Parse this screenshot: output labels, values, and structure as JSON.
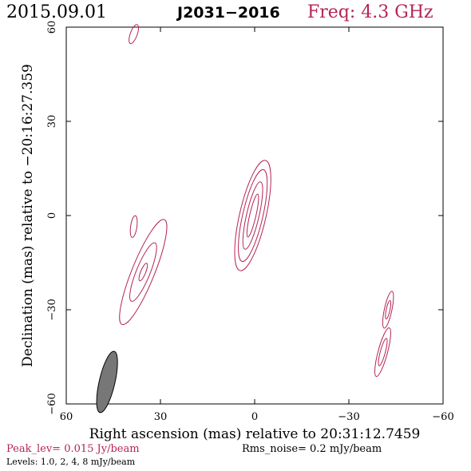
{
  "header": {
    "date": "2015.09.01",
    "source": "J2031−2016",
    "freq": "Freq: 4.3 GHz"
  },
  "footer": {
    "peak": "Peak_lev=  0.015 Jy/beam",
    "rms": "Rms_noise=  0.2 mJy/beam",
    "levels": "Levels: 1.0,   2,   4,   8 mJy/beam"
  },
  "colors": {
    "accent": "#b52456",
    "beam": "#777777"
  },
  "chart_data": {
    "type": "contour",
    "xlabel": "Right ascension (mas) relative to 20:31:12.7459",
    "ylabel": "Declination (mas) relative to −20:16:27.359",
    "xlim": [
      60,
      -60
    ],
    "ylim": [
      -60,
      60
    ],
    "x_ticks": [
      {
        "value": 60,
        "label": "60"
      },
      {
        "value": 30,
        "label": "30"
      },
      {
        "value": 0,
        "label": "0"
      },
      {
        "value": -30,
        "label": "−30"
      },
      {
        "value": -60,
        "label": "−60"
      }
    ],
    "y_ticks": [
      {
        "value": 60,
        "label": "60"
      },
      {
        "value": 30,
        "label": "30"
      },
      {
        "value": 0,
        "label": "0"
      },
      {
        "value": -30,
        "label": "−30"
      },
      {
        "value": -60,
        "label": "−60"
      }
    ],
    "levels_mJy_per_beam": [
      1.0,
      2,
      4,
      8
    ],
    "peak_Jy_per_beam": 0.015,
    "rms_noise_mJy_per_beam": 0.2,
    "beam": {
      "ra": 47,
      "dec": -53,
      "major_mas": 10,
      "minor_mas": 2.5,
      "pa_deg": 13
    },
    "components": [
      {
        "ra": 0.6,
        "dec": 0,
        "contours": [
          {
            "level": 1.0,
            "major": 18,
            "minor": 4.2,
            "pa": 13
          },
          {
            "level": 2,
            "major": 15,
            "minor": 3.2,
            "pa": 13
          },
          {
            "level": 4,
            "major": 11,
            "minor": 2.0,
            "pa": 13
          },
          {
            "level": 8,
            "major": 7,
            "minor": 1.0,
            "pa": 13
          }
        ]
      },
      {
        "ra": 35.5,
        "dec": -18,
        "contours": [
          {
            "level": 1.0,
            "major": 18,
            "minor": 3.6,
            "pa": 22
          },
          {
            "level": 2,
            "major": 10,
            "minor": 2.2,
            "pa": 22
          },
          {
            "level": 4,
            "major": 3,
            "minor": 0.8,
            "pa": 22
          }
        ]
      },
      {
        "ra": 38.5,
        "dec": -3.5,
        "contours": [
          {
            "level": 1.0,
            "major": 3.5,
            "minor": 1.0,
            "pa": 8
          }
        ]
      },
      {
        "ra": 38.5,
        "dec": 57.8,
        "contours": [
          {
            "level": 1.0,
            "major": 3.2,
            "minor": 1.1,
            "pa": 20
          }
        ]
      },
      {
        "ra": -42.5,
        "dec": -30,
        "contours": [
          {
            "level": 1.0,
            "major": 6,
            "minor": 1.2,
            "pa": 12
          },
          {
            "level": 2,
            "major": 3,
            "minor": 0.6,
            "pa": 12
          }
        ]
      },
      {
        "ra": -40.8,
        "dec": -43.5,
        "contours": [
          {
            "level": 1.0,
            "major": 8,
            "minor": 1.5,
            "pa": 15
          },
          {
            "level": 2,
            "major": 4.5,
            "minor": 0.8,
            "pa": 15
          }
        ]
      }
    ]
  }
}
